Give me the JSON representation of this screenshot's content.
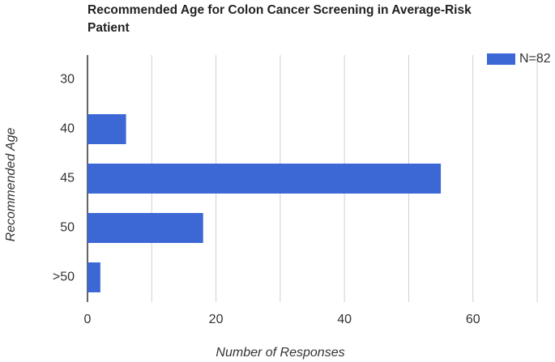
{
  "chart_data": {
    "type": "hbar",
    "title": "Recommended Age for Colon Cancer Screening in Average-Risk Patient",
    "x_label": "Number of Responses",
    "y_label": "Recommended Age",
    "categories": [
      "30",
      "40",
      "45",
      "50",
      ">50"
    ],
    "series": [
      {
        "name": "N=82",
        "color": "#3c68d6",
        "values": [
          0,
          6,
          55,
          18,
          2
        ]
      }
    ],
    "xlim": [
      0,
      70
    ],
    "xticks": [
      0,
      20,
      40,
      60
    ],
    "minor_xticks": [
      10,
      30,
      50,
      70
    ],
    "grid": true,
    "legend": "top-right"
  }
}
